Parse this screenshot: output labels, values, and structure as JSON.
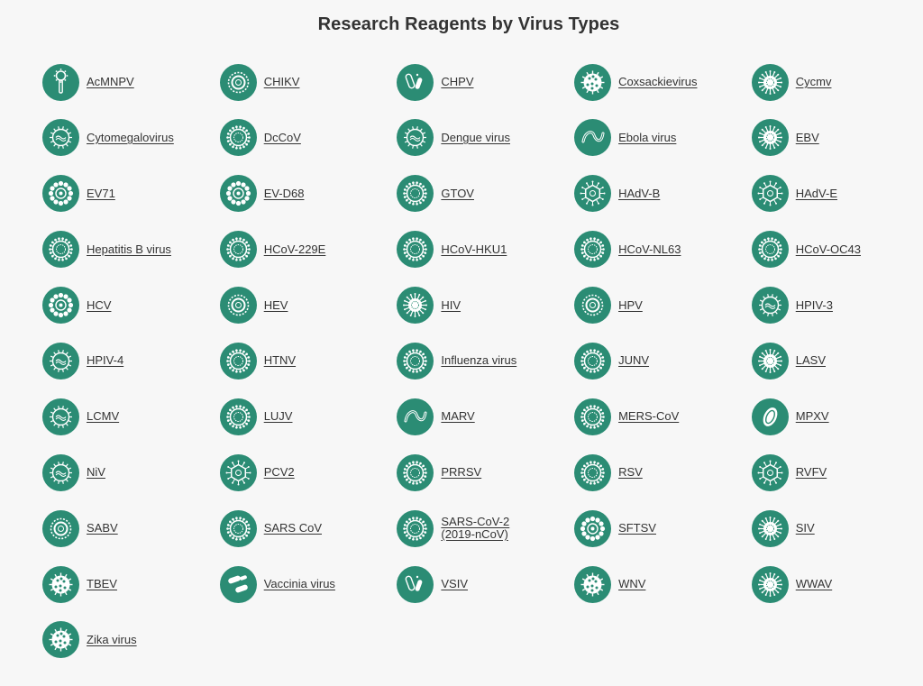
{
  "page": {
    "title": "Research Reagents by Virus Types",
    "icon_color": "#2b8c74",
    "icon_glyph_color": "#ffffff"
  },
  "viruses": [
    {
      "label": "AcMNPV",
      "icon": "rod-virus-icon"
    },
    {
      "label": "CHIKV",
      "icon": "ring-virus-icon"
    },
    {
      "label": "CHPV",
      "icon": "bullet-virus-icon"
    },
    {
      "label": "Coxsackievirus",
      "icon": "spotted-virus-icon"
    },
    {
      "label": "Cycmv",
      "icon": "spiked-virus-icon"
    },
    {
      "label": "Cytomegalovirus",
      "icon": "core-virus-icon"
    },
    {
      "label": "DcCoV",
      "icon": "crown-virus-icon"
    },
    {
      "label": "Dengue virus",
      "icon": "core-virus-icon"
    },
    {
      "label": "Ebola virus",
      "icon": "filament-virus-icon"
    },
    {
      "label": "EBV",
      "icon": "spiked-virus-icon"
    },
    {
      "label": "EV71",
      "icon": "beaded-virus-icon"
    },
    {
      "label": "EV-D68",
      "icon": "beaded-virus-icon"
    },
    {
      "label": "GTOV",
      "icon": "crown-virus-icon"
    },
    {
      "label": "HAdV-B",
      "icon": "hexagon-virus-icon"
    },
    {
      "label": "HAdV-E",
      "icon": "hexagon-virus-icon"
    },
    {
      "label": "Hepatitis B virus",
      "icon": "crown-virus-icon"
    },
    {
      "label": "HCoV-229E",
      "icon": "crown-virus-icon"
    },
    {
      "label": "HCoV-HKU1",
      "icon": "crown-virus-icon"
    },
    {
      "label": "HCoV-NL63",
      "icon": "crown-virus-icon"
    },
    {
      "label": "HCoV-OC43",
      "icon": "crown-virus-icon"
    },
    {
      "label": "HCV",
      "icon": "beaded-virus-icon"
    },
    {
      "label": "HEV",
      "icon": "ring-virus-icon"
    },
    {
      "label": "HIV",
      "icon": "spiked-virus-icon"
    },
    {
      "label": "HPV",
      "icon": "ring-virus-icon"
    },
    {
      "label": "HPIV-3",
      "icon": "core-virus-icon"
    },
    {
      "label": "HPIV-4",
      "icon": "core-virus-icon"
    },
    {
      "label": "HTNV",
      "icon": "crown-virus-icon"
    },
    {
      "label": "Influenza virus",
      "icon": "crown-virus-icon"
    },
    {
      "label": "JUNV",
      "icon": "crown-virus-icon"
    },
    {
      "label": "LASV",
      "icon": "spiked-virus-icon"
    },
    {
      "label": "LCMV",
      "icon": "core-virus-icon"
    },
    {
      "label": "LUJV",
      "icon": "crown-virus-icon"
    },
    {
      "label": "MARV",
      "icon": "filament-virus-icon"
    },
    {
      "label": "MERS-CoV",
      "icon": "crown-virus-icon"
    },
    {
      "label": "MPXV",
      "icon": "oval-virus-icon"
    },
    {
      "label": "NiV",
      "icon": "core-virus-icon"
    },
    {
      "label": "PCV2",
      "icon": "hexagon-virus-icon"
    },
    {
      "label": "PRRSV",
      "icon": "crown-virus-icon"
    },
    {
      "label": "RSV",
      "icon": "crown-virus-icon"
    },
    {
      "label": "RVFV",
      "icon": "hexagon-virus-icon"
    },
    {
      "label": "SABV",
      "icon": "ring-virus-icon"
    },
    {
      "label": "SARS CoV",
      "icon": "crown-virus-icon"
    },
    {
      "label": "SARS-CoV-2\n(2019-nCoV)",
      "icon": "crown-virus-icon"
    },
    {
      "label": "SFTSV",
      "icon": "beaded-virus-icon"
    },
    {
      "label": "SIV",
      "icon": "spiked-virus-icon"
    },
    {
      "label": "TBEV",
      "icon": "spotted-virus-icon"
    },
    {
      "label": "Vaccinia virus",
      "icon": "capsule-virus-icon"
    },
    {
      "label": "VSIV",
      "icon": "bullet-virus-icon"
    },
    {
      "label": "WNV",
      "icon": "spotted-virus-icon"
    },
    {
      "label": "WWAV",
      "icon": "spiked-virus-icon"
    },
    {
      "label": "Zika virus",
      "icon": "spotted-virus-icon"
    }
  ]
}
